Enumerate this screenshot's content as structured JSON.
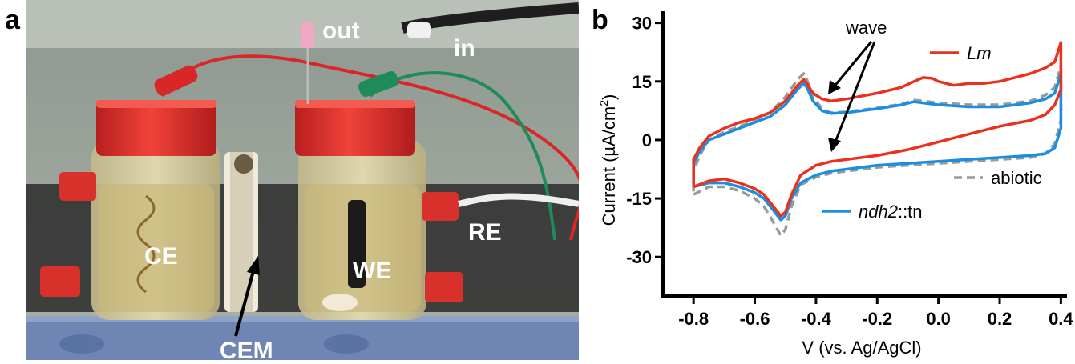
{
  "figure": {
    "panel_a_letter": "a",
    "panel_b_letter": "b"
  },
  "photo": {
    "labels": {
      "out": "out",
      "in": "in",
      "ce": "CE",
      "we": "WE",
      "re": "RE",
      "cem": "CEM"
    },
    "colors": {
      "cap": "#e0312f",
      "wall": "#9aa39a",
      "glass": "#d8cf9a",
      "liquid": "#c9b56e",
      "base": "#6e88b8",
      "bench": "#2a2a2a",
      "red_wire": "#d92626",
      "green_wire": "#1f8a5a"
    }
  },
  "chart_data": {
    "type": "line",
    "xlabel": "V (vs. Ag/AgCl)",
    "ylabel_main": "Current (µA/cm",
    "ylabel_sup": "2",
    "ylabel_end": ")",
    "xlim": [
      -0.9,
      0.42
    ],
    "ylim": [
      -40,
      33
    ],
    "x_ticks": [
      -0.8,
      -0.6,
      -0.4,
      -0.2,
      0.0,
      0.2,
      0.4
    ],
    "x_tick_labels": [
      "-0.8",
      "-0.6",
      "-0.4",
      "-0.2",
      "0.0",
      "0.2",
      "0.4"
    ],
    "y_ticks": [
      30,
      15,
      0,
      -15,
      -30
    ],
    "y_tick_labels": [
      "30",
      "15",
      "0",
      "-15",
      "-30"
    ],
    "annotation": "wave",
    "series": [
      {
        "name": "Lm",
        "legend_italic": "Lm",
        "legend_plain": "",
        "color": "#e8321e",
        "dash": "",
        "points": [
          [
            -0.8,
            -12
          ],
          [
            -0.75,
            -10.5
          ],
          [
            -0.7,
            -10
          ],
          [
            -0.65,
            -11
          ],
          [
            -0.6,
            -12.5
          ],
          [
            -0.57,
            -14
          ],
          [
            -0.54,
            -17
          ],
          [
            -0.515,
            -19.5
          ],
          [
            -0.5,
            -18.5
          ],
          [
            -0.48,
            -14
          ],
          [
            -0.45,
            -9
          ],
          [
            -0.4,
            -6.5
          ],
          [
            -0.35,
            -5.5
          ],
          [
            -0.3,
            -5
          ],
          [
            -0.2,
            -4
          ],
          [
            -0.1,
            -2.5
          ],
          [
            0.0,
            -0.5
          ],
          [
            0.1,
            1.5
          ],
          [
            0.2,
            3.5
          ],
          [
            0.3,
            5
          ],
          [
            0.35,
            6.5
          ],
          [
            0.38,
            9
          ],
          [
            0.4,
            13
          ],
          [
            0.4,
            25
          ],
          [
            0.38,
            20
          ],
          [
            0.35,
            18.5
          ],
          [
            0.3,
            17
          ],
          [
            0.25,
            16
          ],
          [
            0.2,
            15
          ],
          [
            0.15,
            14.5
          ],
          [
            0.1,
            14.5
          ],
          [
            0.05,
            14
          ],
          [
            0.0,
            15
          ],
          [
            -0.02,
            15.8
          ],
          [
            -0.05,
            16
          ],
          [
            -0.08,
            15
          ],
          [
            -0.12,
            13.5
          ],
          [
            -0.2,
            12
          ],
          [
            -0.3,
            10.5
          ],
          [
            -0.35,
            10
          ],
          [
            -0.38,
            10.5
          ],
          [
            -0.41,
            12
          ],
          [
            -0.43,
            14.5
          ],
          [
            -0.44,
            15.5
          ],
          [
            -0.46,
            14
          ],
          [
            -0.5,
            10
          ],
          [
            -0.55,
            7
          ],
          [
            -0.6,
            5.5
          ],
          [
            -0.65,
            4.5
          ],
          [
            -0.7,
            3
          ],
          [
            -0.75,
            1
          ],
          [
            -0.78,
            -2
          ],
          [
            -0.8,
            -5
          ],
          [
            -0.8,
            -12
          ]
        ]
      },
      {
        "name": "ndh2::tn",
        "legend_italic": "ndh2",
        "legend_plain": "::tn",
        "color": "#1a8fe0",
        "dash": "",
        "points": [
          [
            -0.8,
            -12
          ],
          [
            -0.75,
            -11
          ],
          [
            -0.7,
            -11
          ],
          [
            -0.65,
            -12
          ],
          [
            -0.6,
            -13.5
          ],
          [
            -0.57,
            -15
          ],
          [
            -0.54,
            -18
          ],
          [
            -0.515,
            -20.5
          ],
          [
            -0.5,
            -19.5
          ],
          [
            -0.48,
            -15
          ],
          [
            -0.45,
            -11
          ],
          [
            -0.4,
            -9
          ],
          [
            -0.35,
            -8
          ],
          [
            -0.3,
            -7.5
          ],
          [
            -0.2,
            -6.5
          ],
          [
            -0.1,
            -6
          ],
          [
            0.0,
            -5.5
          ],
          [
            0.1,
            -5
          ],
          [
            0.2,
            -4.5
          ],
          [
            0.3,
            -4
          ],
          [
            0.35,
            -3.5
          ],
          [
            0.38,
            -2
          ],
          [
            0.4,
            3
          ],
          [
            0.4,
            17
          ],
          [
            0.38,
            12
          ],
          [
            0.35,
            10.5
          ],
          [
            0.3,
            9.5
          ],
          [
            0.2,
            8.5
          ],
          [
            0.1,
            8.5
          ],
          [
            0.0,
            9
          ],
          [
            -0.05,
            9.5
          ],
          [
            -0.08,
            9.8
          ],
          [
            -0.12,
            9
          ],
          [
            -0.2,
            8
          ],
          [
            -0.3,
            7
          ],
          [
            -0.35,
            6.8
          ],
          [
            -0.38,
            7.5
          ],
          [
            -0.41,
            10
          ],
          [
            -0.43,
            13.5
          ],
          [
            -0.44,
            14.5
          ],
          [
            -0.46,
            13
          ],
          [
            -0.5,
            9
          ],
          [
            -0.55,
            6
          ],
          [
            -0.6,
            4.5
          ],
          [
            -0.65,
            3
          ],
          [
            -0.7,
            1.5
          ],
          [
            -0.75,
            0
          ],
          [
            -0.78,
            -3
          ],
          [
            -0.8,
            -6
          ],
          [
            -0.8,
            -12
          ]
        ]
      },
      {
        "name": "abiotic",
        "legend_italic": "",
        "legend_plain": "abiotic",
        "color": "#9a9a9a",
        "dash": "10 6",
        "points": [
          [
            -0.8,
            -14
          ],
          [
            -0.75,
            -12
          ],
          [
            -0.7,
            -12
          ],
          [
            -0.65,
            -13
          ],
          [
            -0.6,
            -15
          ],
          [
            -0.57,
            -17
          ],
          [
            -0.54,
            -21
          ],
          [
            -0.515,
            -24.5
          ],
          [
            -0.5,
            -23
          ],
          [
            -0.48,
            -17
          ],
          [
            -0.45,
            -11.5
          ],
          [
            -0.4,
            -9.5
          ],
          [
            -0.35,
            -8.5
          ],
          [
            -0.3,
            -8
          ],
          [
            -0.2,
            -7
          ],
          [
            -0.1,
            -6.5
          ],
          [
            0.0,
            -6
          ],
          [
            0.1,
            -5.5
          ],
          [
            0.2,
            -5
          ],
          [
            0.3,
            -4.5
          ],
          [
            0.35,
            -3.5
          ],
          [
            0.38,
            -1
          ],
          [
            0.4,
            5
          ],
          [
            0.4,
            19
          ],
          [
            0.38,
            13.5
          ],
          [
            0.35,
            11.5
          ],
          [
            0.3,
            10
          ],
          [
            0.2,
            9
          ],
          [
            0.1,
            9
          ],
          [
            0.0,
            9.5
          ],
          [
            -0.05,
            10
          ],
          [
            -0.08,
            10.2
          ],
          [
            -0.12,
            9.2
          ],
          [
            -0.2,
            8.2
          ],
          [
            -0.3,
            7.2
          ],
          [
            -0.35,
            7
          ],
          [
            -0.38,
            8
          ],
          [
            -0.41,
            11
          ],
          [
            -0.43,
            15.5
          ],
          [
            -0.44,
            17
          ],
          [
            -0.46,
            15.5
          ],
          [
            -0.5,
            11
          ],
          [
            -0.55,
            7
          ],
          [
            -0.6,
            5
          ],
          [
            -0.65,
            3.5
          ],
          [
            -0.7,
            2
          ],
          [
            -0.75,
            0
          ],
          [
            -0.78,
            -4
          ],
          [
            -0.8,
            -8
          ],
          [
            -0.8,
            -14
          ]
        ]
      }
    ]
  }
}
